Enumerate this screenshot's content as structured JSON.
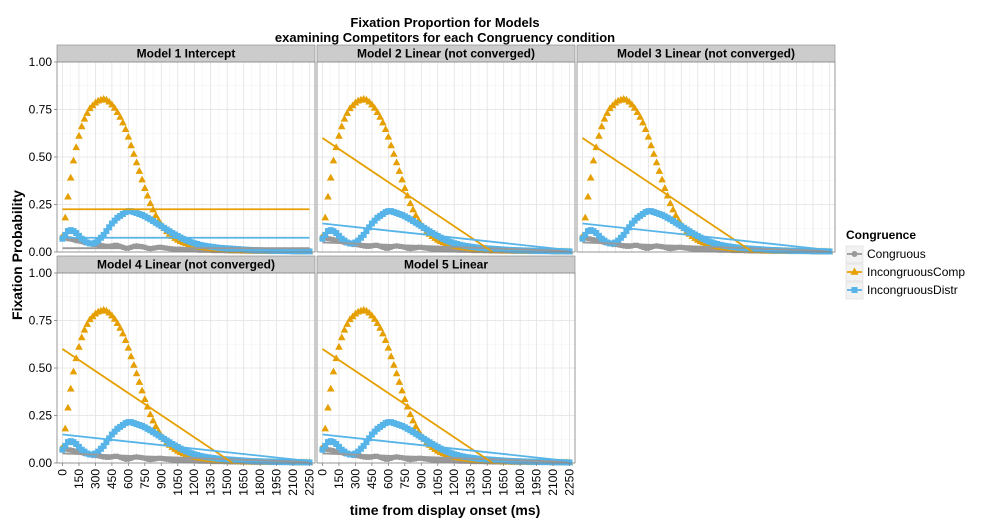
{
  "chart_data": {
    "type": "line",
    "title_lines": [
      "Fixation Proportion for Models",
      "examining Competitors for each Congruency condition"
    ],
    "xlabel": "time from display onset (ms)",
    "ylabel": "Fixation Probability",
    "xlim": [
      -50,
      2300
    ],
    "ylim": [
      0,
      1
    ],
    "x_ticks": [
      "0",
      "150",
      "300",
      "450",
      "600",
      "750",
      "900",
      "1050",
      "1200",
      "1350",
      "1500",
      "1650",
      "1800",
      "1950",
      "2100",
      "2250"
    ],
    "y_ticks": [
      "0.00",
      "0.25",
      "0.50",
      "0.75",
      "1.00"
    ],
    "grid": true,
    "legend": {
      "title": "Congruence",
      "position": "right",
      "entries": [
        "Congruous",
        "IncongruousComp",
        "IncongruousDistr"
      ]
    },
    "colors": {
      "Congruous": "#999999",
      "IncongruousComp": "#E69F00",
      "IncongruousDistr": "#56B4E9"
    },
    "observed": {
      "x_start": 0,
      "x_step": 25,
      "Congruous": [
        0.08,
        0.075,
        0.07,
        0.068,
        0.065,
        0.06,
        0.058,
        0.055,
        0.05,
        0.048,
        0.045,
        0.04,
        0.04,
        0.038,
        0.035,
        0.032,
        0.03,
        0.03,
        0.032,
        0.035,
        0.035,
        0.03,
        0.025,
        0.02,
        0.02,
        0.025,
        0.03,
        0.032,
        0.03,
        0.028,
        0.025,
        0.02,
        0.018,
        0.02,
        0.022,
        0.025,
        0.025,
        0.022,
        0.02,
        0.018,
        0.016,
        0.015,
        0.015,
        0.015,
        0.014,
        0.013,
        0.012,
        0.012,
        0.012,
        0.011,
        0.01,
        0.01,
        0.01,
        0.01,
        0.009,
        0.008,
        0.008,
        0.008,
        0.008,
        0.007,
        0.007,
        0.006,
        0.006,
        0.006,
        0.006,
        0.005,
        0.005,
        0.005,
        0.005,
        0.004,
        0.004,
        0.004,
        0.004,
        0.004,
        0.004,
        0.003,
        0.003,
        0.003,
        0.003,
        0.003,
        0.003,
        0.003,
        0.003,
        0.002,
        0.002,
        0.002,
        0.002,
        0.002,
        0.002,
        0.002,
        0.002
      ],
      "IncongruousComp": [
        0.08,
        0.18,
        0.29,
        0.39,
        0.48,
        0.55,
        0.61,
        0.66,
        0.7,
        0.73,
        0.755,
        0.77,
        0.785,
        0.795,
        0.8,
        0.805,
        0.8,
        0.79,
        0.775,
        0.757,
        0.735,
        0.71,
        0.68,
        0.645,
        0.605,
        0.56,
        0.515,
        0.47,
        0.425,
        0.38,
        0.335,
        0.295,
        0.255,
        0.222,
        0.192,
        0.166,
        0.143,
        0.124,
        0.108,
        0.094,
        0.082,
        0.072,
        0.063,
        0.056,
        0.05,
        0.045,
        0.04,
        0.036,
        0.032,
        0.029,
        0.026,
        0.024,
        0.022,
        0.02,
        0.018,
        0.017,
        0.015,
        0.014,
        0.013,
        0.012,
        0.011,
        0.01,
        0.01,
        0.009,
        0.009,
        0.008,
        0.008,
        0.007,
        0.007,
        0.006,
        0.006,
        0.006,
        0.005,
        0.005,
        0.005,
        0.004,
        0.004,
        0.004,
        0.004,
        0.003,
        0.003,
        0.003,
        0.003,
        0.003,
        0.003,
        0.002,
        0.002,
        0.002,
        0.002,
        0.002,
        0.002
      ],
      "IncongruousDistr": [
        0.07,
        0.09,
        0.11,
        0.115,
        0.11,
        0.1,
        0.085,
        0.07,
        0.06,
        0.05,
        0.045,
        0.045,
        0.05,
        0.06,
        0.075,
        0.09,
        0.11,
        0.13,
        0.15,
        0.165,
        0.18,
        0.19,
        0.2,
        0.21,
        0.215,
        0.215,
        0.21,
        0.205,
        0.2,
        0.195,
        0.188,
        0.18,
        0.172,
        0.163,
        0.154,
        0.145,
        0.136,
        0.127,
        0.118,
        0.109,
        0.1,
        0.092,
        0.084,
        0.076,
        0.069,
        0.062,
        0.056,
        0.051,
        0.046,
        0.042,
        0.038,
        0.035,
        0.032,
        0.03,
        0.028,
        0.026,
        0.024,
        0.022,
        0.021,
        0.02,
        0.019,
        0.018,
        0.017,
        0.016,
        0.015,
        0.014,
        0.013,
        0.012,
        0.011,
        0.01,
        0.01,
        0.009,
        0.009,
        0.008,
        0.008,
        0.007,
        0.007,
        0.006,
        0.006,
        0.006,
        0.005,
        0.005,
        0.005,
        0.005,
        0.004,
        0.004,
        0.004,
        0.004,
        0.004,
        0.003,
        0.003
      ]
    },
    "panels": [
      {
        "label": "Model 1 Intercept",
        "fits": {
          "Congruous": {
            "x": [
              0,
              2250
            ],
            "y": [
              0.02,
              0.02
            ]
          },
          "IncongruousComp": {
            "x": [
              0,
              2250
            ],
            "y": [
              0.225,
              0.225
            ]
          },
          "IncongruousDistr": {
            "x": [
              0,
              2250
            ],
            "y": [
              0.075,
              0.075
            ]
          }
        }
      },
      {
        "label": "Model 2 Linear (not converged)",
        "fits": {
          "Congruous": {
            "x": [
              0,
              2250
            ],
            "y": [
              0.05,
              0.005
            ]
          },
          "IncongruousComp": {
            "x": [
              0,
              1550
            ],
            "y": [
              0.6,
              0.0
            ]
          },
          "IncongruousDistr": {
            "x": [
              0,
              2250
            ],
            "y": [
              0.15,
              0.01
            ]
          }
        }
      },
      {
        "label": "Model 3 Linear (not converged)",
        "fits": {
          "Congruous": {
            "x": [
              0,
              2250
            ],
            "y": [
              0.05,
              0.005
            ]
          },
          "IncongruousComp": {
            "x": [
              0,
              1550
            ],
            "y": [
              0.6,
              0.0
            ]
          },
          "IncongruousDistr": {
            "x": [
              0,
              2250
            ],
            "y": [
              0.15,
              0.01
            ]
          }
        }
      },
      {
        "label": "Model 4 Linear (not converged)",
        "fits": {
          "Congruous": {
            "x": [
              0,
              2250
            ],
            "y": [
              0.05,
              0.005
            ]
          },
          "IncongruousComp": {
            "x": [
              0,
              1550
            ],
            "y": [
              0.6,
              0.0
            ]
          },
          "IncongruousDistr": {
            "x": [
              0,
              2250
            ],
            "y": [
              0.15,
              0.01
            ]
          }
        }
      },
      {
        "label": "Model 5 Linear",
        "fits": {
          "Congruous": {
            "x": [
              0,
              2250
            ],
            "y": [
              0.05,
              0.005
            ]
          },
          "IncongruousComp": {
            "x": [
              0,
              1550
            ],
            "y": [
              0.6,
              0.0
            ]
          },
          "IncongruousDistr": {
            "x": [
              0,
              2250
            ],
            "y": [
              0.15,
              0.01
            ]
          }
        }
      }
    ]
  }
}
